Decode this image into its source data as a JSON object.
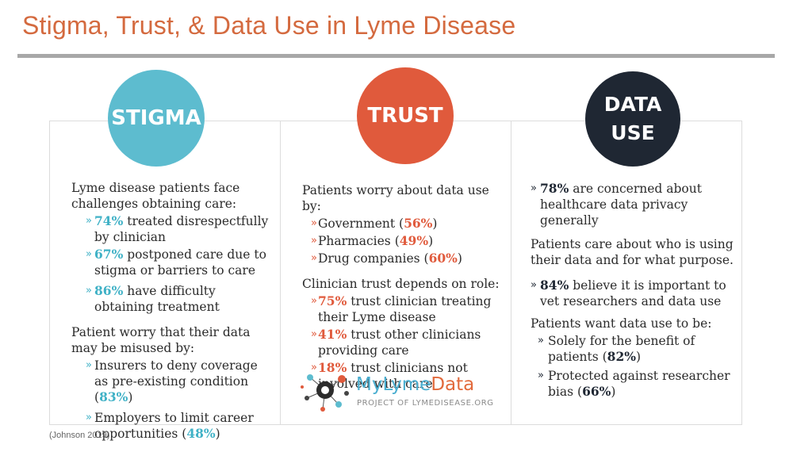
{
  "title": "Stigma, Trust, & Data Use in Lyme Disease",
  "citation": "(Johnson 2019)",
  "colors": {
    "title": "#d46a3f",
    "stigma": "#5dbccf",
    "trust": "#e05a3c",
    "data_use": "#1f2733"
  },
  "stigma": {
    "heading": "STIGMA",
    "intro": "Lyme disease patients face challenges obtaining care:",
    "items": [
      {
        "marker": "»",
        "value": "74%",
        "text": " treated disrespectfully by clinician"
      },
      {
        "marker": "»",
        "value": "67%",
        "text": " postponed care due to stigma or barriers to care"
      },
      {
        "marker": "»",
        "value": "86%",
        "text": " have difficulty obtaining treatment"
      }
    ],
    "intro2": "Patient worry that their data may be misused by:",
    "items2": [
      {
        "marker": "»",
        "text": "Insurers to deny coverage as pre-existing condition (",
        "value": "83%",
        "close": ")"
      },
      {
        "marker": "»",
        "text": "Employers to limit career opportunities (",
        "value": "48%",
        "close": ")"
      }
    ]
  },
  "trust": {
    "heading": "TRUST",
    "intro": "Patients worry about data use by:",
    "items": [
      {
        "marker": "»",
        "text": "Government (",
        "value": "56%",
        "close": ")"
      },
      {
        "marker": "»",
        "text": "Pharmacies (",
        "value": "49%",
        "close": ")"
      },
      {
        "marker": "»",
        "text": "Drug companies (",
        "value": "60%",
        "close": ")"
      }
    ],
    "intro2": "Clinician trust depends on role:",
    "items2": [
      {
        "marker": "»",
        "value": "75%",
        "text": " trust clinician treating their Lyme disease"
      },
      {
        "marker": "»",
        "value": "41%",
        "text": " trust other clinicians providing care"
      },
      {
        "marker": "»",
        "value": "18%",
        "text": " trust clinicians not involved with care"
      }
    ]
  },
  "data_use": {
    "heading_line1": "DATA",
    "heading_line2": "USE",
    "stat1": {
      "marker": "»",
      "value": "78%",
      "text": " are concerned about healthcare data privacy generally"
    },
    "para": "Patients care about who is using their data and for what purpose.",
    "stat2": {
      "marker": "»",
      "value": "84%",
      "text": " believe it is important to vet researchers and data use"
    },
    "intro": "Patients want data use to be:",
    "items": [
      {
        "marker": "»",
        "text": "Solely for the benefit of patients (",
        "value": "82%",
        "close": ")"
      },
      {
        "marker": "»",
        "text": "Protected against researcher bias (",
        "value": "66%",
        "close": ")"
      }
    ]
  },
  "logo": {
    "part1": "MyLyme",
    "part2": "Data",
    "subtitle": "PROJECT OF LYMEDISEASE.ORG"
  }
}
